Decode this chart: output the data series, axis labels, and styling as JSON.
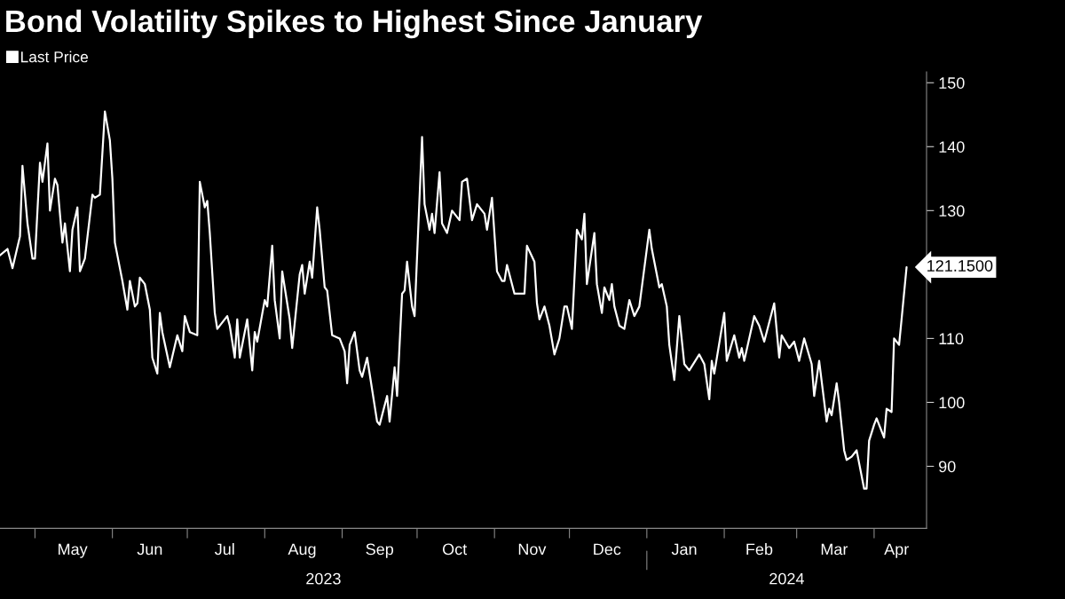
{
  "chart_data": {
    "type": "line",
    "title": "Bond Volatility Spikes to Highest Since January",
    "legend": "top left",
    "grid": false,
    "marker": "none",
    "line_style": "solid",
    "x": [
      "2023-04-17",
      "2023-04-20",
      "2023-04-22",
      "2023-04-25",
      "2023-04-26",
      "2023-04-28",
      "2023-04-30",
      "2023-05-01",
      "2023-05-03",
      "2023-05-04",
      "2023-05-06",
      "2023-05-07",
      "2023-05-09",
      "2023-05-10",
      "2023-05-12",
      "2023-05-13",
      "2023-05-15",
      "2023-05-16",
      "2023-05-18",
      "2023-05-19",
      "2023-05-21",
      "2023-05-24",
      "2023-05-25",
      "2023-05-27",
      "2023-05-29",
      "2023-05-31",
      "2023-06-01",
      "2023-06-02",
      "2023-06-04",
      "2023-06-05",
      "2023-06-07",
      "2023-06-08",
      "2023-06-10",
      "2023-06-11",
      "2023-06-12",
      "2023-06-14",
      "2023-06-16",
      "2023-06-17",
      "2023-06-19",
      "2023-06-20",
      "2023-06-21",
      "2023-06-24",
      "2023-06-27",
      "2023-06-29",
      "2023-06-30",
      "2023-07-02",
      "2023-07-05",
      "2023-07-06",
      "2023-07-08",
      "2023-07-09",
      "2023-07-10",
      "2023-07-12",
      "2023-07-13",
      "2023-07-17",
      "2023-07-18",
      "2023-07-20",
      "2023-07-21",
      "2023-07-22",
      "2023-07-25",
      "2023-07-27",
      "2023-07-28",
      "2023-07-29",
      "2023-08-01",
      "2023-08-02",
      "2023-08-04",
      "2023-08-05",
      "2023-08-07",
      "2023-08-08",
      "2023-08-09",
      "2023-08-11",
      "2023-08-12",
      "2023-08-15",
      "2023-08-16",
      "2023-08-17",
      "2023-08-19",
      "2023-08-20",
      "2023-08-22",
      "2023-08-23",
      "2023-08-25",
      "2023-08-26",
      "2023-08-28",
      "2023-08-31",
      "2023-09-02",
      "2023-09-03",
      "2023-09-04",
      "2023-09-06",
      "2023-09-08",
      "2023-09-09",
      "2023-09-11",
      "2023-09-13",
      "2023-09-15",
      "2023-09-16",
      "2023-09-19",
      "2023-09-20",
      "2023-09-22",
      "2023-09-23",
      "2023-09-25",
      "2023-09-26",
      "2023-09-27",
      "2023-09-29",
      "2023-09-30",
      "2023-10-03",
      "2023-10-04",
      "2023-10-06",
      "2023-10-07",
      "2023-10-08",
      "2023-10-10",
      "2023-10-11",
      "2023-10-13",
      "2023-10-15",
      "2023-10-18",
      "2023-10-19",
      "2023-10-21",
      "2023-10-23",
      "2023-10-25",
      "2023-10-28",
      "2023-10-29",
      "2023-10-31",
      "2023-11-02",
      "2023-11-04",
      "2023-11-05",
      "2023-11-06",
      "2023-11-09",
      "2023-11-13",
      "2023-11-14",
      "2023-11-17",
      "2023-11-18",
      "2023-11-19",
      "2023-11-21",
      "2023-11-23",
      "2023-11-25",
      "2023-11-27",
      "2023-11-29",
      "2023-11-30",
      "2023-12-02",
      "2023-12-04",
      "2023-12-06",
      "2023-12-07",
      "2023-12-08",
      "2023-12-11",
      "2023-12-12",
      "2023-12-14",
      "2023-12-15",
      "2023-12-17",
      "2023-12-18",
      "2023-12-19",
      "2023-12-21",
      "2023-12-23",
      "2023-12-25",
      "2023-12-27",
      "2023-12-29",
      "2024-01-02",
      "2024-01-03",
      "2024-01-06",
      "2024-01-07",
      "2024-01-09",
      "2024-01-10",
      "2024-01-12",
      "2024-01-14",
      "2024-01-16",
      "2024-01-18",
      "2024-01-22",
      "2024-01-24",
      "2024-01-26",
      "2024-01-27",
      "2024-01-28",
      "2024-02-01",
      "2024-02-02",
      "2024-02-05",
      "2024-02-07",
      "2024-02-08",
      "2024-02-09",
      "2024-02-13",
      "2024-02-15",
      "2024-02-17",
      "2024-02-21",
      "2024-02-23",
      "2024-02-24",
      "2024-02-27",
      "2024-02-29",
      "2024-03-02",
      "2024-03-04",
      "2024-03-07",
      "2024-03-08",
      "2024-03-10",
      "2024-03-13",
      "2024-03-14",
      "2024-03-15",
      "2024-03-17",
      "2024-03-18",
      "2024-03-20",
      "2024-03-21",
      "2024-03-23",
      "2024-03-25",
      "2024-03-26",
      "2024-03-28",
      "2024-03-29",
      "2024-03-30",
      "2024-04-01",
      "2024-04-02",
      "2024-04-05",
      "2024-04-06",
      "2024-04-08",
      "2024-04-09",
      "2024-04-11",
      "2024-04-12",
      "2024-04-14"
    ],
    "series": [
      {
        "name": "Last Price",
        "color": "#ffffff",
        "values": [
          123,
          124,
          121,
          126,
          137,
          128,
          122.5,
          122.5,
          137.5,
          134.5,
          140.5,
          130,
          135,
          134,
          125,
          128,
          120.5,
          127,
          130.5,
          120.5,
          122.5,
          132.5,
          132,
          132.5,
          145.5,
          141,
          135,
          125,
          121,
          119,
          114.5,
          119,
          115,
          115.5,
          119.5,
          118.5,
          114.5,
          107,
          104.5,
          114,
          111,
          105.5,
          110.5,
          108,
          113.5,
          111,
          110.5,
          134.5,
          130.5,
          131.5,
          126.5,
          114,
          111.5,
          113.5,
          112,
          107,
          113,
          107,
          113,
          105,
          111,
          109.5,
          116,
          115,
          124.5,
          116,
          110,
          120.5,
          118,
          113,
          108.5,
          120,
          121.5,
          117,
          122,
          119.5,
          130.5,
          127,
          118,
          117.5,
          110.5,
          110,
          108,
          103,
          109,
          111,
          105,
          104,
          107,
          102,
          97,
          96.5,
          101,
          97,
          105.5,
          101,
          117,
          117.5,
          122,
          115,
          113.5,
          141.5,
          131,
          127,
          129.5,
          126.5,
          136,
          128,
          126.5,
          130,
          128.5,
          134.5,
          135,
          128.5,
          131,
          129.5,
          127,
          132,
          120.5,
          119,
          119,
          121.5,
          117,
          117,
          124.5,
          122,
          115.5,
          113,
          115,
          112,
          107.5,
          110,
          115,
          115,
          111.5,
          127,
          125.5,
          129.5,
          118.5,
          126.5,
          118.5,
          114,
          118,
          116,
          118.5,
          115,
          112,
          111.5,
          116,
          113.5,
          115,
          127,
          124,
          118,
          118.5,
          115,
          109,
          103.5,
          113.5,
          106,
          105,
          107.5,
          106,
          100.5,
          106.5,
          104.5,
          114,
          106.5,
          110.5,
          107,
          108.5,
          106.5,
          113.5,
          112,
          109.5,
          115.5,
          107,
          110.5,
          108.5,
          109.5,
          106.5,
          110,
          106,
          101,
          106.5,
          97,
          99,
          98,
          103,
          100,
          92.5,
          91,
          91.5,
          92.5,
          90.5,
          86.5,
          86.5,
          94,
          96.5,
          97.5,
          94.5,
          99,
          98.5,
          110,
          109,
          113,
          121.15
        ]
      }
    ],
    "xlim": [
      "2023-04-17",
      "2024-04-22"
    ],
    "xticks": [
      {
        "value": "2023-05-01",
        "label": null
      },
      {
        "value": "2023-05-16",
        "label": "May"
      },
      {
        "value": "2023-06-01",
        "label": null
      },
      {
        "value": "2023-06-16",
        "label": "Jun"
      },
      {
        "value": "2023-07-01",
        "label": null
      },
      {
        "value": "2023-07-16",
        "label": "Jul"
      },
      {
        "value": "2023-08-01",
        "label": null
      },
      {
        "value": "2023-08-16",
        "label": "Aug"
      },
      {
        "value": "2023-09-01",
        "label": null
      },
      {
        "value": "2023-09-16",
        "label": "Sep"
      },
      {
        "value": "2023-10-01",
        "label": null
      },
      {
        "value": "2023-10-16",
        "label": "Oct"
      },
      {
        "value": "2023-11-01",
        "label": null
      },
      {
        "value": "2023-11-16",
        "label": "Nov"
      },
      {
        "value": "2023-12-01",
        "label": null
      },
      {
        "value": "2023-12-16",
        "label": "Dec"
      },
      {
        "value": "2024-01-01",
        "label": null
      },
      {
        "value": "2024-01-16",
        "label": "Jan"
      },
      {
        "value": "2024-02-01",
        "label": null
      },
      {
        "value": "2024-02-15",
        "label": "Feb"
      },
      {
        "value": "2024-03-01",
        "label": null
      },
      {
        "value": "2024-03-16",
        "label": "Mar"
      },
      {
        "value": "2024-04-01",
        "label": null
      },
      {
        "value": "2024-04-10",
        "label": "Apr"
      }
    ],
    "ylim": [
      80.3,
      151.7
    ],
    "yticks": [
      90,
      100,
      110,
      {
        "value": 120,
        "label": null
      },
      130,
      140,
      150
    ],
    "annotations": [
      "2023",
      "2024",
      {
        "text": "121.1500",
        "x": "2024-04-14",
        "y": 121.15
      }
    ]
  }
}
